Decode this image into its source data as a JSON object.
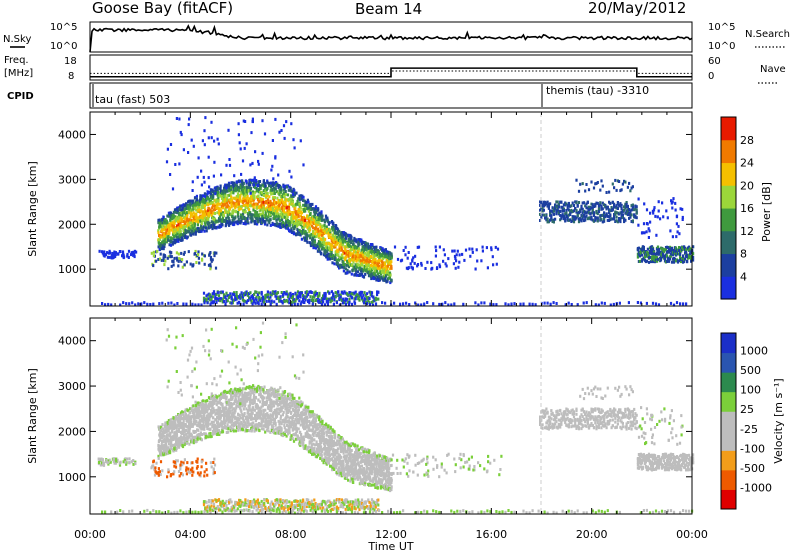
{
  "header": {
    "station": "Goose Bay (fitACF)",
    "beam": "Beam 14",
    "date": "20/May/2012"
  },
  "summary_panels": {
    "nsky_label": "N.Sky",
    "nsky_ticks": [
      "10^5",
      "10^0"
    ],
    "nsearch_label": "N.Search",
    "freq_label_1": "Freq.",
    "freq_label_2": "[MHz]",
    "freq_ticks": [
      "18",
      "8"
    ],
    "nave_ticks": [
      "60",
      "0"
    ],
    "nave_label": "Nave",
    "cpid_label": "CPID",
    "cpid_modes": [
      "tau (fast) 503",
      "themis (tau) -3310"
    ]
  },
  "colors": {
    "power": [
      "#1a2fe0",
      "#1c3fa0",
      "#2d6b6a",
      "#3f9a3e",
      "#9bd63a",
      "#f5c000",
      "#f07a00",
      "#e81a00"
    ],
    "velocity": [
      "#e00000",
      "#ee5a00",
      "#f29d1a",
      "#bdbdbd",
      "#bdbdbd",
      "#7bcf3a",
      "#2c8a4e",
      "#2a55b0",
      "#1b2fc8"
    ]
  },
  "chart_data": [
    {
      "type": "heatmap",
      "title": "Power",
      "xlabel": "Time UT",
      "ylabel": "Slant Range [km]",
      "x_ticks": [
        "00:00",
        "04:00",
        "08:00",
        "12:00",
        "16:00",
        "20:00",
        "00:00"
      ],
      "xlim_hours": [
        0,
        24
      ],
      "y_ticks": [
        "1000",
        "2000",
        "3000",
        "4000"
      ],
      "ylim_km": [
        180,
        4500
      ],
      "colorbar": {
        "label": "Power [dB]",
        "ticks": [
          "4",
          "8",
          "12",
          "16",
          "20",
          "24",
          "28"
        ],
        "range": [
          0,
          30
        ]
      },
      "echo_regions": [
        {
          "name": "main arc",
          "t_start": 2.7,
          "t_end": 12.0,
          "range_start_km": 1600,
          "range_peak_km": 2450,
          "range_end_km": 1500,
          "power_core_db": 22
        },
        {
          "name": "low near-range band",
          "t_start": 4.5,
          "t_end": 11.5,
          "range_km": 300,
          "power_core_db": 10
        },
        {
          "name": "afternoon patch",
          "t_start": 17.9,
          "t_end": 21.8,
          "range_km": 2300,
          "power_core_db": 8
        },
        {
          "name": "late patch",
          "t_start": 21.8,
          "t_end": 24.0,
          "range_km": 1300,
          "power_core_db": 10
        }
      ]
    },
    {
      "type": "heatmap",
      "title": "Velocity",
      "xlabel": "Time UT",
      "ylabel": "Slant Range [km]",
      "x_ticks": [
        "00:00",
        "04:00",
        "08:00",
        "12:00",
        "16:00",
        "20:00",
        "00:00"
      ],
      "xlim_hours": [
        0,
        24
      ],
      "y_ticks": [
        "1000",
        "2000",
        "3000",
        "4000"
      ],
      "ylim_km": [
        180,
        4500
      ],
      "colorbar": {
        "label": "Velocity [m s⁻¹]",
        "ticks": [
          "1000",
          "500",
          "100",
          "25",
          "-25",
          "-100",
          "-500",
          "-1000"
        ],
        "range": [
          -1000,
          1000
        ]
      },
      "echo_regions": [
        {
          "name": "main arc",
          "t_start": 2.7,
          "t_end": 12.0,
          "velocity_core": 0
        },
        {
          "name": "afternoon patch",
          "t_start": 17.9,
          "t_end": 21.8,
          "velocity_core": 0
        },
        {
          "name": "early negative cluster",
          "t_start": 2.8,
          "t_end": 4.8,
          "range_km": 1150,
          "velocity_core": -300
        }
      ]
    }
  ]
}
